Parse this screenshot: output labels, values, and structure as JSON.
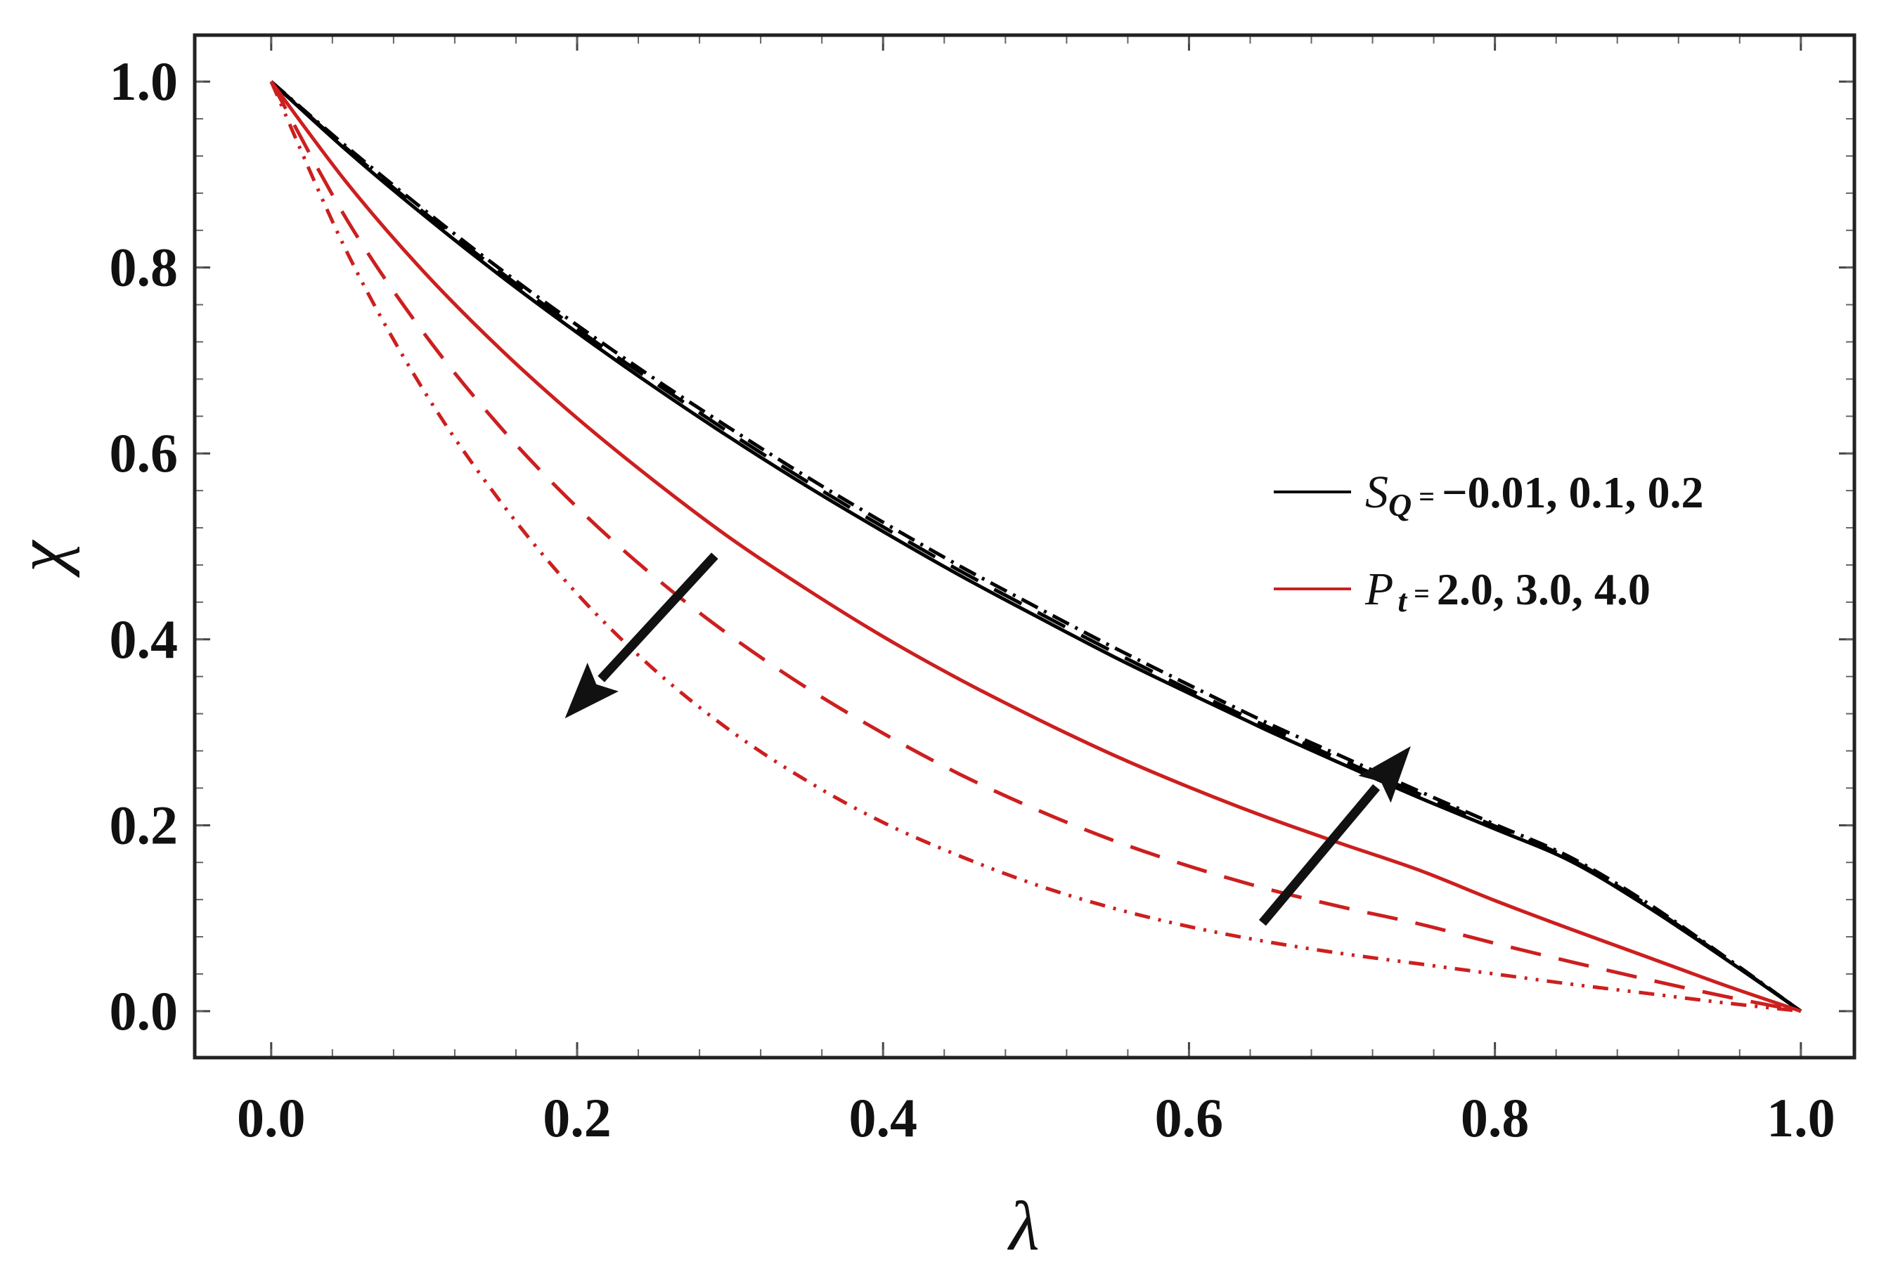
{
  "chart_data": {
    "type": "line",
    "title": "",
    "xlabel": "λ",
    "ylabel": "χ",
    "xlim": [
      0.0,
      1.0
    ],
    "ylim": [
      -0.05,
      1.05
    ],
    "xticks": [
      "0.0",
      "0.2",
      "0.4",
      "0.6",
      "0.8",
      "1.0"
    ],
    "yticks": [
      "0.0",
      "0.2",
      "0.4",
      "0.6",
      "0.8",
      "1.0"
    ],
    "x": [
      0.0,
      0.05,
      0.1,
      0.15,
      0.2,
      0.25,
      0.3,
      0.35,
      0.4,
      0.45,
      0.5,
      0.55,
      0.6,
      0.65,
      0.7,
      0.75,
      0.8,
      0.85,
      0.9,
      0.95,
      1.0
    ],
    "series": [
      {
        "name": "S_Q = -0.01",
        "group": "S_Q",
        "color": "#000000",
        "dash": "solid",
        "values": [
          1.0,
          0.925,
          0.856,
          0.791,
          0.73,
          0.672,
          0.617,
          0.565,
          0.516,
          0.469,
          0.425,
          0.382,
          0.342,
          0.303,
          0.266,
          0.23,
          0.196,
          0.161,
          0.112,
          0.057,
          0.0
        ]
      },
      {
        "name": "S_Q = 0.1",
        "group": "S_Q",
        "color": "#000000",
        "dash": "dashed",
        "values": [
          1.0,
          0.927,
          0.859,
          0.795,
          0.734,
          0.677,
          0.622,
          0.57,
          0.521,
          0.474,
          0.43,
          0.387,
          0.346,
          0.307,
          0.27,
          0.234,
          0.199,
          0.163,
          0.114,
          0.058,
          0.0
        ]
      },
      {
        "name": "S_Q = 0.2",
        "group": "S_Q",
        "color": "#000000",
        "dash": "dashdot",
        "values": [
          1.0,
          0.929,
          0.862,
          0.798,
          0.738,
          0.681,
          0.627,
          0.575,
          0.526,
          0.479,
          0.435,
          0.392,
          0.351,
          0.311,
          0.274,
          0.237,
          0.201,
          0.165,
          0.116,
          0.059,
          0.0
        ]
      },
      {
        "name": "P_t = 2.0",
        "group": "P_t",
        "color": "#cc1f1f",
        "dash": "solid",
        "values": [
          1.0,
          0.89,
          0.795,
          0.712,
          0.638,
          0.571,
          0.509,
          0.454,
          0.403,
          0.357,
          0.315,
          0.276,
          0.241,
          0.209,
          0.18,
          0.152,
          0.119,
          0.088,
          0.058,
          0.028,
          0.0
        ]
      },
      {
        "name": "P_t = 3.0",
        "group": "P_t",
        "color": "#cc1f1f",
        "dash": "dashed",
        "values": [
          1.0,
          0.85,
          0.729,
          0.628,
          0.542,
          0.468,
          0.404,
          0.348,
          0.299,
          0.255,
          0.217,
          0.184,
          0.156,
          0.132,
          0.112,
          0.094,
          0.073,
          0.053,
          0.034,
          0.016,
          0.0
        ]
      },
      {
        "name": "P_t = 4.0",
        "group": "P_t",
        "color": "#cc1f1f",
        "dash": "dashdotdot",
        "values": [
          1.0,
          0.815,
          0.667,
          0.548,
          0.449,
          0.368,
          0.302,
          0.248,
          0.203,
          0.167,
          0.136,
          0.111,
          0.091,
          0.075,
          0.062,
          0.051,
          0.04,
          0.029,
          0.019,
          0.009,
          0.0
        ]
      }
    ],
    "legend": {
      "position": "right",
      "entries": [
        {
          "symbol": "S",
          "subscript": "Q",
          "eq": "=",
          "values": "−0.01, 0.1, 0.2",
          "color": "#000000"
        },
        {
          "symbol": "P",
          "subscript": "t",
          "eq": "=",
          "values": "2.0, 3.0, 4.0",
          "color": "#cc1f1f"
        }
      ]
    },
    "annotations": [
      {
        "name": "arrow-increasing-S_Q",
        "from": [
          0.648,
          0.095
        ],
        "to": [
          0.745,
          0.285
        ],
        "color": "#111111"
      },
      {
        "name": "arrow-increasing-P_t",
        "from": [
          0.29,
          0.49
        ],
        "to": [
          0.192,
          0.315
        ],
        "color": "#111111"
      }
    ]
  }
}
